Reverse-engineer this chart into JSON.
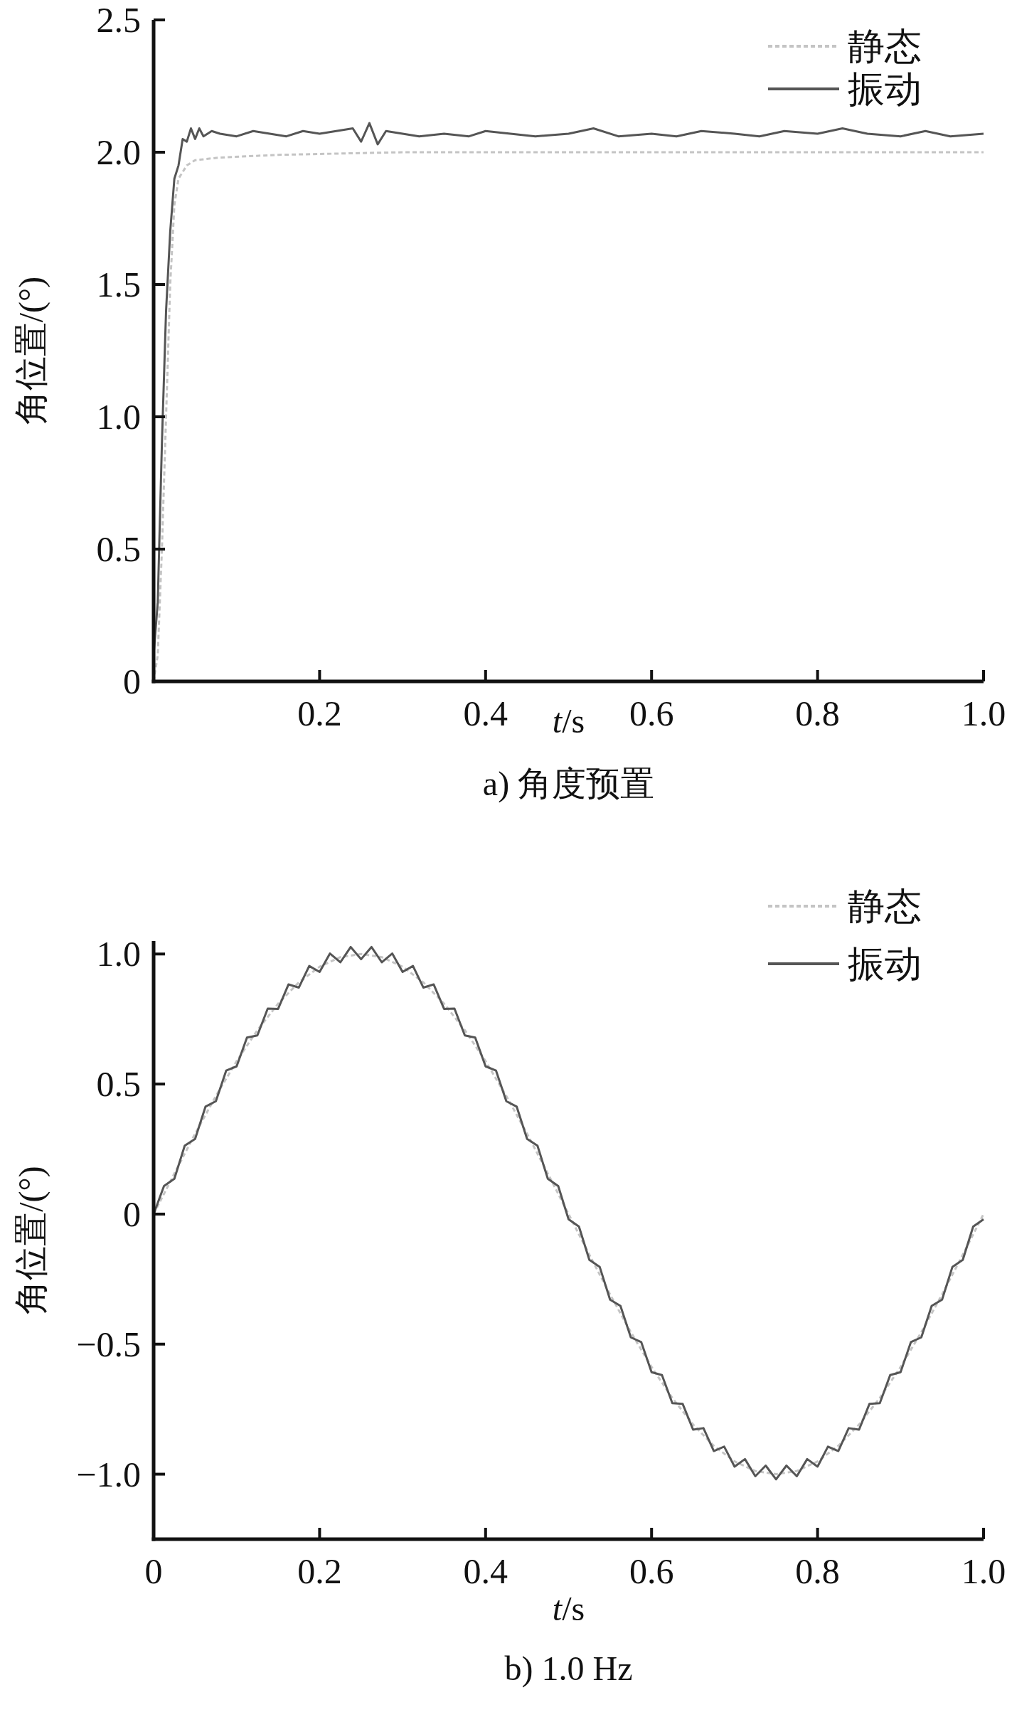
{
  "chart_data": [
    {
      "type": "line",
      "title": "a) 角度预置",
      "xlabel": "*t*/s",
      "ylabel": "角位置/(°)",
      "xlim": [
        0,
        1
      ],
      "ylim": [
        0,
        2.5
      ],
      "xticks": [
        0.2,
        0.4,
        0.6,
        {
          "value": 1,
          "label": "1.0"
        },
        0.8
      ],
      "yticks": [
        0,
        0.5,
        {
          "value": 1,
          "label": "1.0"
        },
        1.5,
        {
          "value": 2,
          "label": "2.0"
        },
        2.5
      ],
      "legend": "top right",
      "grid": false,
      "series": [
        {
          "name": "静态",
          "color": "#c4c4c4",
          "line_style": "dashed",
          "x": [
            0,
            0.005,
            0.01,
            0.015,
            0.02,
            0.025,
            0.03,
            0.04,
            0.05,
            0.08,
            0.15,
            0.3,
            1.0
          ],
          "values": [
            0,
            0.1,
            0.5,
            1.0,
            1.5,
            1.8,
            1.9,
            1.95,
            1.97,
            1.98,
            1.99,
            2.0,
            2.0
          ]
        },
        {
          "name": "振动",
          "color": "#555555",
          "line_style": "solid",
          "x": [
            0,
            0.005,
            0.01,
            0.015,
            0.02,
            0.025,
            0.03,
            0.035,
            0.04,
            0.045,
            0.05,
            0.055,
            0.06,
            0.07,
            0.08,
            0.1,
            0.12,
            0.14,
            0.16,
            0.18,
            0.2,
            0.22,
            0.24,
            0.25,
            0.26,
            0.27,
            0.28,
            0.3,
            0.32,
            0.35,
            0.38,
            0.4,
            0.43,
            0.46,
            0.5,
            0.53,
            0.56,
            0.6,
            0.63,
            0.66,
            0.7,
            0.73,
            0.76,
            0.8,
            0.83,
            0.86,
            0.9,
            0.93,
            0.96,
            1.0
          ],
          "values": [
            0.1,
            0.3,
            0.9,
            1.4,
            1.7,
            1.9,
            1.95,
            2.05,
            2.04,
            2.09,
            2.05,
            2.09,
            2.06,
            2.08,
            2.07,
            2.06,
            2.08,
            2.07,
            2.06,
            2.08,
            2.07,
            2.08,
            2.09,
            2.04,
            2.11,
            2.03,
            2.08,
            2.07,
            2.06,
            2.07,
            2.06,
            2.08,
            2.07,
            2.06,
            2.07,
            2.09,
            2.06,
            2.07,
            2.06,
            2.08,
            2.07,
            2.06,
            2.08,
            2.07,
            2.09,
            2.07,
            2.06,
            2.08,
            2.06,
            2.07
          ]
        }
      ]
    },
    {
      "type": "line",
      "title": "b) 1.0 Hz",
      "xlabel": "*t*/s",
      "ylabel": "角位置/(°)",
      "xlim": [
        0,
        1
      ],
      "ylim": [
        -1.25,
        1.05
      ],
      "xticks": [
        0,
        0.2,
        0.4,
        0.6,
        0.8,
        {
          "value": 1,
          "label": "1.0"
        }
      ],
      "yticks": [
        {
          "value": -1,
          "label": "−1.0"
        },
        {
          "value": -0.5,
          "label": "−0.5"
        },
        0,
        0.5,
        {
          "value": 1,
          "label": "1.0"
        }
      ],
      "legend": "top right",
      "grid": false,
      "series": [
        {
          "name": "静态",
          "color": "#c4c4c4",
          "line_style": "dashed",
          "x": [
            0,
            0.025,
            0.05,
            0.075,
            0.1,
            0.125,
            0.15,
            0.175,
            0.2,
            0.225,
            0.25,
            0.275,
            0.3,
            0.325,
            0.35,
            0.375,
            0.4,
            0.425,
            0.45,
            0.475,
            0.5,
            0.525,
            0.55,
            0.575,
            0.6,
            0.625,
            0.65,
            0.675,
            0.7,
            0.725,
            0.75,
            0.775,
            0.8,
            0.825,
            0.85,
            0.875,
            0.9,
            0.925,
            0.95,
            0.975,
            1.0
          ],
          "values": [
            0,
            0.156,
            0.309,
            0.454,
            0.588,
            0.707,
            0.809,
            0.891,
            0.951,
            0.988,
            1.0,
            0.988,
            0.951,
            0.891,
            0.809,
            0.707,
            0.588,
            0.454,
            0.309,
            0.156,
            0,
            -0.156,
            -0.309,
            -0.454,
            -0.588,
            -0.707,
            -0.809,
            -0.891,
            -0.951,
            -0.988,
            -1.0,
            -0.988,
            -0.951,
            -0.891,
            -0.809,
            -0.707,
            -0.588,
            -0.454,
            -0.309,
            -0.156,
            0
          ]
        },
        {
          "name": "振动",
          "color": "#555555",
          "line_style": "solid",
          "x": [
            0,
            0.0125,
            0.025,
            0.0375,
            0.05,
            0.0625,
            0.075,
            0.0875,
            0.1,
            0.1125,
            0.125,
            0.1375,
            0.15,
            0.1625,
            0.175,
            0.1875,
            0.2,
            0.2125,
            0.225,
            0.2375,
            0.25,
            0.2625,
            0.275,
            0.2875,
            0.3,
            0.3125,
            0.325,
            0.3375,
            0.35,
            0.3625,
            0.375,
            0.3875,
            0.4,
            0.4125,
            0.425,
            0.4375,
            0.45,
            0.4625,
            0.475,
            0.4875,
            0.5,
            0.5125,
            0.525,
            0.5375,
            0.55,
            0.5625,
            0.575,
            0.5875,
            0.6,
            0.6125,
            0.625,
            0.6375,
            0.65,
            0.6625,
            0.675,
            0.6875,
            0.7,
            0.7125,
            0.725,
            0.7375,
            0.75,
            0.7625,
            0.775,
            0.7875,
            0.8,
            0.8125,
            0.825,
            0.8375,
            0.85,
            0.8625,
            0.875,
            0.8875,
            0.9,
            0.9125,
            0.925,
            0.9375,
            0.95,
            0.9625,
            0.975,
            0.9875,
            1.0
          ],
          "values": [
            0,
            0.108,
            0.136,
            0.263,
            0.289,
            0.413,
            0.434,
            0.552,
            0.568,
            0.679,
            0.687,
            0.79,
            0.789,
            0.883,
            0.871,
            0.954,
            0.931,
            1.002,
            0.968,
            1.027,
            0.98,
            1.027,
            0.968,
            1.002,
            0.931,
            0.954,
            0.871,
            0.883,
            0.789,
            0.79,
            0.687,
            0.679,
            0.568,
            0.552,
            0.434,
            0.413,
            0.289,
            0.263,
            0.136,
            0.108,
            -0.02,
            -0.048,
            -0.176,
            -0.203,
            -0.329,
            -0.353,
            -0.474,
            -0.492,
            -0.608,
            -0.619,
            -0.727,
            -0.73,
            -0.829,
            -0.823,
            -0.911,
            -0.894,
            -0.971,
            -0.942,
            -1.008,
            -0.967,
            -1.02,
            -0.967,
            -1.008,
            -0.942,
            -0.971,
            -0.894,
            -0.911,
            -0.823,
            -0.829,
            -0.73,
            -0.727,
            -0.619,
            -0.608,
            -0.492,
            -0.474,
            -0.353,
            -0.329,
            -0.203,
            -0.176,
            -0.048,
            -0.02
          ]
        }
      ]
    }
  ]
}
